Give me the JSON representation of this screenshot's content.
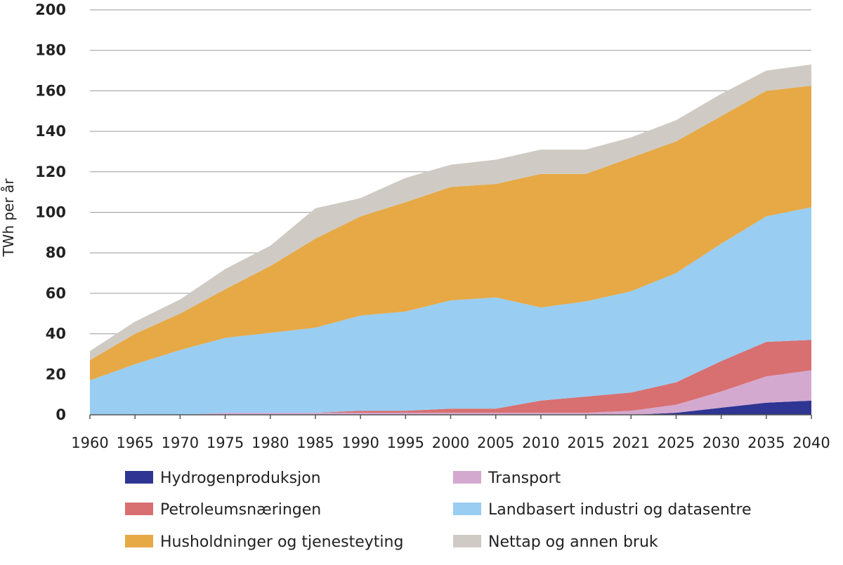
{
  "chart_data": {
    "type": "area",
    "stacked": true,
    "title": "",
    "xlabel": "",
    "ylabel": "TWh per år",
    "ylim": [
      0,
      200
    ],
    "yticks": [
      0,
      20,
      40,
      60,
      80,
      100,
      120,
      140,
      160,
      180,
      200
    ],
    "grid": true,
    "legend_position": "bottom",
    "categories": [
      "1960",
      "1965",
      "1970",
      "1975",
      "1980",
      "1985",
      "1990",
      "1995",
      "2000",
      "2005",
      "2010",
      "2015",
      "2021",
      "2025",
      "2030",
      "2035",
      "2040"
    ],
    "series": [
      {
        "name": "Hydrogenproduksjon",
        "color": "#2e3592",
        "values": [
          0,
          0,
          0,
          0,
          0,
          0,
          0,
          0,
          0,
          0,
          0,
          0,
          0,
          1,
          3.5,
          6,
          7
        ]
      },
      {
        "name": "Transport",
        "color": "#d4a9d0",
        "values": [
          0,
          0,
          0,
          1,
          1,
          1,
          1,
          1,
          1,
          1,
          1,
          1,
          2,
          4,
          8,
          13,
          15
        ]
      },
      {
        "name": "Petroleumsnæringen",
        "color": "#d86f70",
        "values": [
          0,
          0,
          0,
          0,
          0,
          0,
          1,
          1,
          2,
          2,
          6,
          8,
          9,
          11,
          15,
          17,
          15
        ]
      },
      {
        "name": "Landbasert industri og datasentre",
        "color": "#99cdf2",
        "values": [
          17,
          25,
          32,
          37,
          39.5,
          42,
          47,
          49,
          53.5,
          55,
          46,
          47,
          50,
          54,
          58,
          62,
          65.5
        ]
      },
      {
        "name": "Husholdninger og tjenesteyting",
        "color": "#e6a946",
        "values": [
          10,
          15,
          18,
          24,
          33,
          44,
          49,
          54,
          56,
          56,
          66,
          63,
          66,
          65,
          63,
          62,
          60
        ]
      },
      {
        "name": "Nettap og annen bruk",
        "color": "#cfcbc4",
        "values": [
          4.5,
          6,
          7,
          10,
          10,
          15,
          9,
          12,
          11,
          12,
          12,
          12,
          10,
          10.5,
          11,
          10,
          10.5
        ]
      }
    ]
  }
}
